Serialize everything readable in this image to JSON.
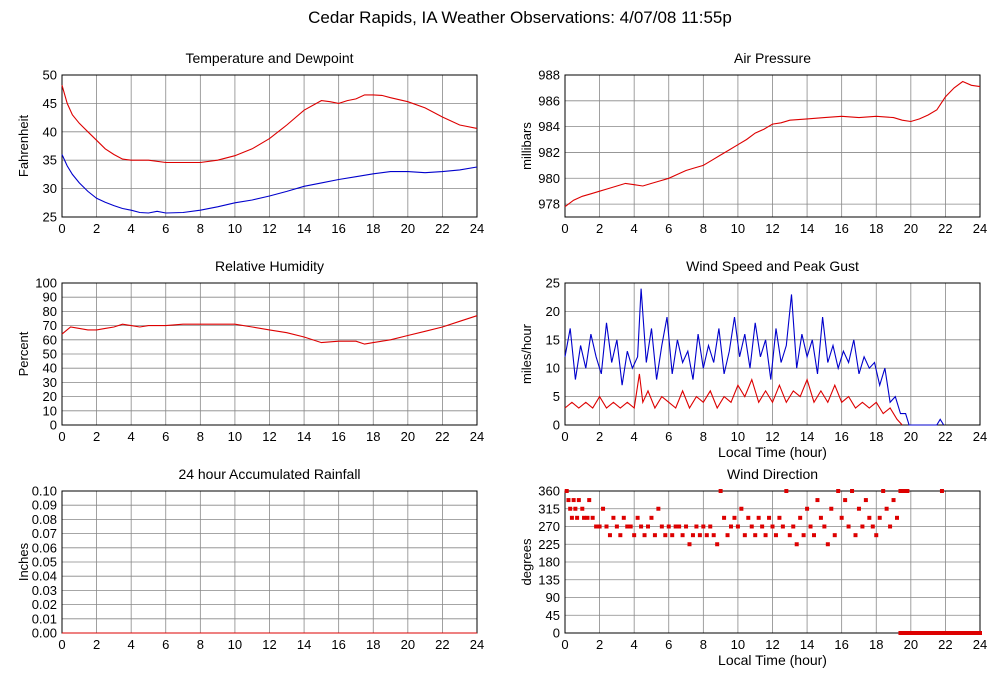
{
  "page": {
    "title": "Cedar Rapids, IA Weather Observations: 4/07/08 11:55p"
  },
  "colors": {
    "red": "#dd0000",
    "blue": "#0000cc",
    "grid": "#888888",
    "frame": "#000000"
  },
  "chart_data": [
    {
      "id": "temperature",
      "type": "line",
      "title": "Temperature and Dewpoint",
      "xlabel": "",
      "ylabel": "Fahrenheit",
      "xlim": [
        0,
        24
      ],
      "ylim": [
        25,
        50
      ],
      "xticks": [
        0,
        2,
        4,
        6,
        8,
        10,
        12,
        14,
        16,
        18,
        20,
        22,
        24
      ],
      "yticks": [
        25,
        30,
        35,
        40,
        45,
        50
      ],
      "grid": true,
      "series": [
        {
          "color": "#dd0000",
          "x": [
            0,
            0.3,
            0.6,
            1,
            1.5,
            2,
            2.5,
            3,
            3.5,
            4,
            5,
            6,
            7,
            8,
            9,
            10,
            11,
            12,
            13,
            14,
            15,
            15.5,
            16,
            16.5,
            17,
            17.5,
            18,
            18.5,
            19,
            20,
            21,
            22,
            23,
            24
          ],
          "y": [
            48.2,
            45,
            43,
            41.5,
            40,
            38.5,
            37,
            36,
            35.2,
            35,
            35,
            34.6,
            34.6,
            34.6,
            35,
            35.8,
            37,
            38.8,
            41.2,
            43.8,
            45.5,
            45.3,
            45,
            45.5,
            45.8,
            46.5,
            46.5,
            46.4,
            46,
            45.3,
            44.2,
            42.6,
            41.2,
            40.6
          ]
        },
        {
          "color": "#0000cc",
          "x": [
            0,
            0.3,
            0.6,
            1,
            1.5,
            2,
            2.5,
            3,
            3.5,
            4,
            4.5,
            5,
            5.5,
            6,
            7,
            8,
            9,
            10,
            11,
            12,
            13,
            14,
            15,
            16,
            17,
            18,
            19,
            20,
            21,
            22,
            23,
            24
          ],
          "y": [
            36,
            34,
            32.5,
            31,
            29.5,
            28.3,
            27.6,
            27,
            26.5,
            26.2,
            25.8,
            25.7,
            26,
            25.7,
            25.8,
            26.2,
            26.8,
            27.5,
            28,
            28.7,
            29.5,
            30.4,
            31,
            31.6,
            32.1,
            32.6,
            33,
            33,
            32.8,
            33,
            33.3,
            33.8
          ]
        }
      ]
    },
    {
      "id": "pressure",
      "type": "line",
      "title": "Air Pressure",
      "xlabel": "",
      "ylabel": "millibars",
      "xlim": [
        0,
        24
      ],
      "ylim": [
        977,
        988
      ],
      "xticks": [
        0,
        2,
        4,
        6,
        8,
        10,
        12,
        14,
        16,
        18,
        20,
        22,
        24
      ],
      "yticks": [
        978,
        980,
        982,
        984,
        986,
        988
      ],
      "grid": true,
      "series": [
        {
          "color": "#dd0000",
          "x": [
            0,
            0.5,
            1,
            1.5,
            2,
            2.5,
            3,
            3.5,
            4,
            4.5,
            5,
            5.5,
            6,
            6.5,
            7,
            7.5,
            8,
            8.5,
            9,
            9.5,
            10,
            10.5,
            11,
            11.5,
            12,
            12.5,
            13,
            14,
            15,
            16,
            17,
            18,
            19,
            19.5,
            20,
            20.5,
            21,
            21.5,
            22,
            22.5,
            23,
            23.5,
            24
          ],
          "y": [
            977.8,
            978.3,
            978.6,
            978.8,
            979,
            979.2,
            979.4,
            979.6,
            979.5,
            979.4,
            979.6,
            979.8,
            980,
            980.3,
            980.6,
            980.8,
            981,
            981.4,
            981.8,
            982.2,
            982.6,
            983,
            983.5,
            983.8,
            984.2,
            984.3,
            984.5,
            984.6,
            984.7,
            984.8,
            984.7,
            984.8,
            984.7,
            984.5,
            984.4,
            984.6,
            984.9,
            985.3,
            986.3,
            987,
            987.5,
            987.2,
            987.1
          ]
        }
      ]
    },
    {
      "id": "humidity",
      "type": "line",
      "title": "Relative Humidity",
      "xlabel": "",
      "ylabel": "Percent",
      "xlim": [
        0,
        24
      ],
      "ylim": [
        0,
        100
      ],
      "xticks": [
        0,
        2,
        4,
        6,
        8,
        10,
        12,
        14,
        16,
        18,
        20,
        22,
        24
      ],
      "yticks": [
        0,
        10,
        20,
        30,
        40,
        50,
        60,
        70,
        80,
        90,
        100
      ],
      "grid": true,
      "series": [
        {
          "color": "#dd0000",
          "x": [
            0,
            0.5,
            1,
            1.5,
            2,
            2.5,
            3,
            3.5,
            4,
            4.5,
            5,
            6,
            7,
            8,
            9,
            10,
            11,
            12,
            13,
            14,
            15,
            16,
            17,
            17.5,
            18,
            19,
            20,
            21,
            22,
            23,
            24
          ],
          "y": [
            64,
            69,
            68,
            67,
            67,
            68,
            69,
            71,
            70,
            69,
            70,
            70,
            71,
            71,
            71,
            71,
            69,
            67,
            65,
            62,
            58,
            59,
            59,
            57,
            58,
            60,
            63,
            66,
            69,
            73,
            77
          ]
        }
      ]
    },
    {
      "id": "wind-speed",
      "type": "line",
      "title": "Wind Speed and Peak Gust",
      "xlabel": "Local Time (hour)",
      "ylabel": "miles/hour",
      "xlim": [
        0,
        24
      ],
      "ylim": [
        0,
        25
      ],
      "xticks": [
        0,
        2,
        4,
        6,
        8,
        10,
        12,
        14,
        16,
        18,
        20,
        22,
        24
      ],
      "yticks": [
        0,
        5,
        10,
        15,
        20,
        25
      ],
      "grid": true,
      "series": [
        {
          "color": "#0000cc",
          "x": [
            0,
            0.3,
            0.6,
            0.9,
            1.2,
            1.5,
            1.8,
            2.1,
            2.4,
            2.7,
            3,
            3.3,
            3.6,
            3.9,
            4.2,
            4.4,
            4.7,
            5,
            5.3,
            5.6,
            5.9,
            6.2,
            6.5,
            6.8,
            7.1,
            7.4,
            7.7,
            8,
            8.3,
            8.6,
            8.9,
            9.2,
            9.5,
            9.8,
            10.1,
            10.4,
            10.7,
            11,
            11.3,
            11.6,
            11.9,
            12.2,
            12.5,
            12.8,
            13.1,
            13.4,
            13.7,
            14,
            14.3,
            14.6,
            14.9,
            15.2,
            15.5,
            15.8,
            16.1,
            16.4,
            16.7,
            17,
            17.3,
            17.6,
            17.9,
            18.2,
            18.5,
            18.8,
            19.1,
            19.4,
            19.7,
            19.9,
            21.5,
            21.7,
            21.9
          ],
          "y": [
            12,
            17,
            8,
            14,
            10,
            16,
            12,
            9,
            18,
            11,
            15,
            7,
            13,
            10,
            12,
            24,
            11,
            17,
            8,
            14,
            19,
            9,
            15,
            11,
            13,
            8,
            16,
            10,
            14,
            11,
            17,
            9,
            13,
            19,
            12,
            16,
            10,
            18,
            12,
            15,
            8,
            17,
            11,
            14,
            23,
            10,
            16,
            12,
            15,
            9,
            19,
            11,
            14,
            10,
            13,
            11,
            15,
            9,
            12,
            10,
            11,
            7,
            10,
            4,
            5,
            2,
            2,
            0,
            0,
            1,
            0
          ]
        },
        {
          "color": "#dd0000",
          "x": [
            0,
            0.4,
            0.8,
            1.2,
            1.6,
            2,
            2.4,
            2.8,
            3.2,
            3.6,
            4,
            4.3,
            4.5,
            4.8,
            5.2,
            5.6,
            6,
            6.4,
            6.8,
            7.2,
            7.6,
            8,
            8.4,
            8.8,
            9.2,
            9.6,
            10,
            10.4,
            10.8,
            11.2,
            11.6,
            12,
            12.4,
            12.8,
            13.2,
            13.6,
            14,
            14.4,
            14.8,
            15.2,
            15.6,
            16,
            16.4,
            16.8,
            17.2,
            17.6,
            18,
            18.4,
            18.8,
            19.2,
            19.5
          ],
          "y": [
            3,
            4,
            3,
            4,
            3,
            5,
            3,
            4,
            3,
            4,
            3,
            9,
            4,
            6,
            3,
            5,
            4,
            3,
            6,
            3,
            5,
            4,
            6,
            3,
            5,
            4,
            7,
            5,
            8,
            4,
            6,
            4,
            7,
            4,
            6,
            5,
            8,
            4,
            6,
            4,
            7,
            4,
            5,
            3,
            4,
            3,
            4,
            2,
            3,
            1,
            0
          ]
        }
      ]
    },
    {
      "id": "rainfall",
      "type": "line",
      "title": "24 hour Accumulated Rainfall",
      "xlabel": "",
      "ylabel": "Inches",
      "xlim": [
        0,
        24
      ],
      "ylim": [
        0,
        0.1
      ],
      "xticks": [
        0,
        2,
        4,
        6,
        8,
        10,
        12,
        14,
        16,
        18,
        20,
        22,
        24
      ],
      "yticks": [
        "0.00",
        "0.01",
        "0.02",
        "0.03",
        "0.04",
        "0.05",
        "0.06",
        "0.07",
        "0.08",
        "0.09",
        "0.10"
      ],
      "grid": true,
      "series": [
        {
          "color": "#dd0000",
          "x": [
            0,
            24
          ],
          "y": [
            0,
            0
          ]
        }
      ]
    },
    {
      "id": "wind-direction",
      "type": "scatter",
      "title": "Wind Direction",
      "xlabel": "Local Time (hour)",
      "ylabel": "degrees",
      "xlim": [
        0,
        24
      ],
      "ylim": [
        0,
        360
      ],
      "xticks": [
        0,
        2,
        4,
        6,
        8,
        10,
        12,
        14,
        16,
        18,
        20,
        22,
        24
      ],
      "yticks": [
        0,
        45,
        90,
        135,
        180,
        225,
        270,
        315,
        360
      ],
      "grid": true,
      "series": [
        {
          "color": "#dd0000",
          "x": [
            0.1,
            0.2,
            0.3,
            0.4,
            0.5,
            0.6,
            0.7,
            0.8,
            1.0,
            1.1,
            1.3,
            1.4,
            1.6,
            1.8,
            2.0,
            2.2,
            2.4,
            2.6,
            2.8,
            3.0,
            3.2,
            3.4,
            3.6,
            3.8,
            4.0,
            4.2,
            4.4,
            4.6,
            4.8,
            5.0,
            5.2,
            5.4,
            5.6,
            5.8,
            6.0,
            6.2,
            6.4,
            6.6,
            6.8,
            7.0,
            7.2,
            7.4,
            7.6,
            7.8,
            8.0,
            8.2,
            8.4,
            8.6,
            8.8,
            9.0,
            9.2,
            9.4,
            9.6,
            9.8,
            10.0,
            10.2,
            10.4,
            10.6,
            10.8,
            11.0,
            11.2,
            11.4,
            11.6,
            11.8,
            12.0,
            12.2,
            12.4,
            12.6,
            12.8,
            13.0,
            13.2,
            13.4,
            13.6,
            13.8,
            14.0,
            14.2,
            14.4,
            14.6,
            14.8,
            15.0,
            15.2,
            15.4,
            15.6,
            15.8,
            16.0,
            16.2,
            16.4,
            16.6,
            16.8,
            17.0,
            17.2,
            17.4,
            17.6,
            17.8,
            18.0,
            18.2,
            18.4,
            18.6,
            18.8,
            19.0,
            19.2,
            19.4,
            19.6,
            19.8,
            21.8
          ],
          "y": [
            360,
            337,
            315,
            292,
            337,
            315,
            292,
            337,
            315,
            292,
            292,
            337,
            292,
            270,
            270,
            315,
            270,
            248,
            292,
            270,
            248,
            292,
            270,
            270,
            248,
            292,
            270,
            248,
            270,
            292,
            248,
            315,
            270,
            248,
            270,
            248,
            270,
            270,
            248,
            270,
            225,
            248,
            270,
            248,
            270,
            248,
            270,
            248,
            225,
            360,
            292,
            248,
            270,
            292,
            270,
            315,
            248,
            292,
            270,
            248,
            292,
            270,
            248,
            292,
            270,
            248,
            292,
            270,
            360,
            248,
            270,
            225,
            292,
            248,
            315,
            270,
            248,
            337,
            292,
            270,
            225,
            315,
            248,
            360,
            292,
            337,
            270,
            360,
            248,
            315,
            270,
            337,
            292,
            270,
            248,
            292,
            360,
            315,
            270,
            337,
            292,
            360,
            360,
            360,
            360
          ]
        },
        {
          "color": "#dd0000",
          "x": [
            19.4,
            19.6,
            19.8,
            20.0,
            20.2,
            20.4,
            20.6,
            20.8,
            21.0,
            21.2,
            21.4,
            21.6,
            21.8,
            22.0,
            22.2,
            22.4,
            22.6,
            22.8,
            23.0,
            23.2,
            23.4,
            23.6,
            23.8,
            24.0
          ],
          "y": [
            0,
            0,
            0,
            0,
            0,
            0,
            0,
            0,
            0,
            0,
            0,
            0,
            0,
            0,
            0,
            0,
            0,
            0,
            0,
            0,
            0,
            0,
            0,
            0
          ]
        }
      ]
    }
  ]
}
